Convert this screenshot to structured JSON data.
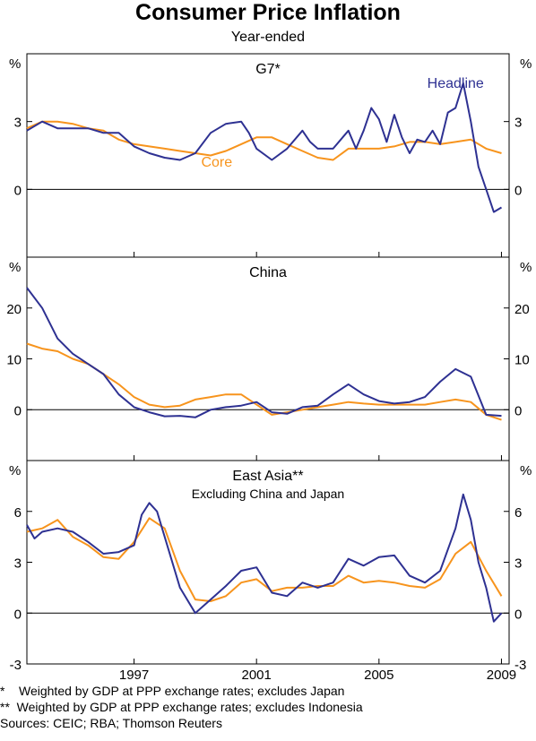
{
  "title": "Consumer Price Inflation",
  "subtitle": "Year-ended",
  "unit": "%",
  "x_ticks": [
    "1997",
    "2001",
    "2005",
    "2009"
  ],
  "colors": {
    "headline": "#2e3192",
    "core": "#f7941d",
    "axis": "#000000"
  },
  "chart_data": [
    {
      "type": "line",
      "title": "G7*",
      "ylim": [
        -3,
        6
      ],
      "yticks": [
        "3",
        "0"
      ],
      "series": [
        {
          "name": "Headline",
          "color": "#2e3192",
          "label_anchor": [
            2008.0,
            4.5
          ],
          "x": [
            1994.0,
            1994.5,
            1995.0,
            1995.5,
            1996.0,
            1996.5,
            1997.0,
            1997.5,
            1998.0,
            1998.5,
            1999.0,
            1999.5,
            2000.0,
            2000.5,
            2001.0,
            2001.25,
            2001.5,
            2002.0,
            2002.5,
            2003.0,
            2003.25,
            2003.5,
            2004.0,
            2004.5,
            2004.75,
            2005.0,
            2005.25,
            2005.5,
            2005.75,
            2006.0,
            2006.25,
            2006.5,
            2006.75,
            2007.0,
            2007.25,
            2007.5,
            2007.75,
            2008.0,
            2008.25,
            2008.5,
            2008.75,
            2009.0,
            2009.25,
            2009.5
          ],
          "values": [
            2.6,
            3.0,
            2.7,
            2.7,
            2.7,
            2.5,
            2.5,
            1.9,
            1.6,
            1.4,
            1.3,
            1.6,
            2.5,
            2.9,
            3.0,
            2.5,
            1.8,
            1.3,
            1.8,
            2.6,
            2.1,
            1.8,
            1.8,
            2.6,
            1.8,
            2.6,
            3.6,
            3.1,
            2.1,
            3.3,
            2.3,
            1.6,
            2.2,
            2.1,
            2.6,
            2.0,
            3.4,
            3.6,
            4.7,
            3.0,
            1.0,
            0.0,
            -1.0,
            -0.8
          ]
        },
        {
          "name": "Core",
          "color": "#f7941d",
          "label_anchor": [
            2000.2,
            1.0
          ],
          "x": [
            1994.0,
            1994.5,
            1995.0,
            1995.5,
            1996.0,
            1996.5,
            1997.0,
            1997.5,
            1998.0,
            1998.5,
            1999.0,
            1999.5,
            2000.0,
            2000.5,
            2001.0,
            2001.5,
            2002.0,
            2002.5,
            2003.0,
            2003.5,
            2004.0,
            2004.5,
            2005.0,
            2005.5,
            2006.0,
            2006.5,
            2007.0,
            2007.5,
            2008.0,
            2008.5,
            2009.0,
            2009.5
          ],
          "values": [
            2.7,
            3.0,
            3.0,
            2.9,
            2.7,
            2.6,
            2.2,
            2.0,
            1.9,
            1.8,
            1.7,
            1.6,
            1.5,
            1.7,
            2.0,
            2.3,
            2.3,
            2.0,
            1.7,
            1.4,
            1.3,
            1.8,
            1.8,
            1.8,
            1.9,
            2.1,
            2.1,
            2.0,
            2.1,
            2.2,
            1.8,
            1.6
          ]
        }
      ]
    },
    {
      "type": "line",
      "title": "China",
      "ylim": [
        -10,
        30
      ],
      "yticks": [
        "20",
        "10",
        "0"
      ],
      "series": [
        {
          "name": "Headline",
          "color": "#2e3192",
          "x": [
            1994.0,
            1994.5,
            1995.0,
            1995.5,
            1996.0,
            1996.5,
            1997.0,
            1997.5,
            1998.0,
            1998.5,
            1999.0,
            1999.5,
            2000.0,
            2000.5,
            2001.0,
            2001.5,
            2002.0,
            2002.5,
            2003.0,
            2003.5,
            2004.0,
            2004.5,
            2005.0,
            2005.5,
            2006.0,
            2006.5,
            2007.0,
            2007.5,
            2008.0,
            2008.5,
            2009.0,
            2009.5
          ],
          "values": [
            24.0,
            20.0,
            14.0,
            11.0,
            9.0,
            7.0,
            3.0,
            0.5,
            -0.5,
            -1.3,
            -1.2,
            -1.5,
            0.0,
            0.5,
            0.8,
            1.5,
            -0.5,
            -0.8,
            0.5,
            0.8,
            3.0,
            5.0,
            3.0,
            1.7,
            1.2,
            1.5,
            2.5,
            5.5,
            8.0,
            6.5,
            -1.0,
            -1.2
          ]
        },
        {
          "name": "Core",
          "color": "#f7941d",
          "x": [
            1994.0,
            1994.5,
            1995.0,
            1995.5,
            1996.0,
            1996.5,
            1997.0,
            1997.5,
            1998.0,
            1998.5,
            1999.0,
            1999.5,
            2000.0,
            2000.5,
            2001.0,
            2001.5,
            2002.0,
            2002.5,
            2003.0,
            2003.5,
            2004.0,
            2004.5,
            2005.0,
            2005.5,
            2006.0,
            2006.5,
            2007.0,
            2007.5,
            2008.0,
            2008.5,
            2009.0,
            2009.5
          ],
          "values": [
            13.0,
            12.0,
            11.5,
            10.0,
            9.0,
            7.0,
            5.0,
            2.5,
            1.0,
            0.5,
            0.8,
            2.0,
            2.5,
            3.0,
            3.0,
            1.0,
            -1.0,
            -0.5,
            0.0,
            0.5,
            1.0,
            1.5,
            1.2,
            1.0,
            1.0,
            1.0,
            1.0,
            1.5,
            2.0,
            1.5,
            -1.0,
            -2.0
          ]
        }
      ]
    },
    {
      "type": "line",
      "title": "East Asia**",
      "subtitle": "Excluding China and Japan",
      "ylim": [
        -3,
        9
      ],
      "yticks": [
        "6",
        "3",
        "0",
        "-3"
      ],
      "series": [
        {
          "name": "Headline",
          "color": "#2e3192",
          "x": [
            1994.0,
            1994.25,
            1994.5,
            1995.0,
            1995.5,
            1996.0,
            1996.5,
            1997.0,
            1997.5,
            1997.75,
            1998.0,
            1998.25,
            1998.5,
            1999.0,
            1999.5,
            2000.0,
            2000.5,
            2001.0,
            2001.5,
            2002.0,
            2002.5,
            2003.0,
            2003.5,
            2004.0,
            2004.5,
            2005.0,
            2005.5,
            2006.0,
            2006.5,
            2007.0,
            2007.5,
            2008.0,
            2008.25,
            2008.5,
            2008.75,
            2009.0,
            2009.25,
            2009.5
          ],
          "values": [
            5.2,
            4.4,
            4.8,
            5.0,
            4.8,
            4.2,
            3.5,
            3.6,
            4.0,
            5.8,
            6.5,
            6.0,
            4.5,
            1.5,
            0.0,
            0.8,
            1.6,
            2.5,
            2.7,
            1.2,
            1.0,
            1.8,
            1.5,
            1.8,
            3.2,
            2.8,
            3.3,
            3.4,
            2.2,
            1.8,
            2.5,
            5.0,
            7.0,
            5.5,
            3.0,
            1.5,
            -0.5,
            0.0
          ]
        },
        {
          "name": "Core",
          "color": "#f7941d",
          "x": [
            1994.0,
            1994.5,
            1995.0,
            1995.5,
            1996.0,
            1996.5,
            1997.0,
            1997.5,
            1998.0,
            1998.5,
            1999.0,
            1999.5,
            2000.0,
            2000.5,
            2001.0,
            2001.5,
            2002.0,
            2002.5,
            2003.0,
            2003.5,
            2004.0,
            2004.5,
            2005.0,
            2005.5,
            2006.0,
            2006.5,
            2007.0,
            2007.5,
            2008.0,
            2008.5,
            2009.0,
            2009.5
          ],
          "values": [
            4.8,
            5.0,
            5.5,
            4.5,
            4.0,
            3.3,
            3.2,
            4.2,
            5.6,
            5.0,
            2.5,
            0.8,
            0.7,
            1.0,
            1.8,
            2.0,
            1.3,
            1.5,
            1.5,
            1.6,
            1.6,
            2.2,
            1.8,
            1.9,
            1.8,
            1.6,
            1.5,
            2.0,
            3.5,
            4.2,
            2.5,
            1.0
          ]
        }
      ]
    }
  ],
  "footnotes": [
    "*    Weighted by GDP at PPP exchange rates; excludes Japan",
    "**  Weighted by GDP at PPP exchange rates; excludes Indonesia",
    "Sources: CEIC; RBA; Thomson Reuters"
  ]
}
